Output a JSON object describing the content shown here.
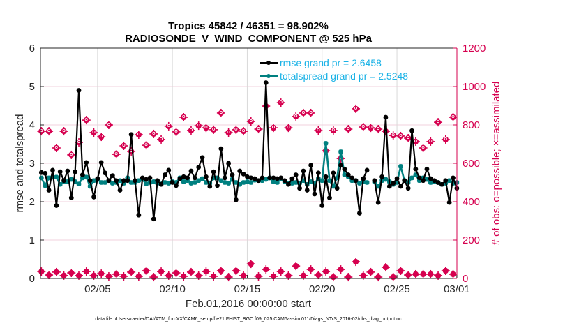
{
  "chart_data": {
    "type": "line",
    "title_line1": "Tropics 45842 / 46351 = 98.902%",
    "title_line2": "RADIOSONDE_V_WIND_COMPONENT @ 525 hPa",
    "xlabel": "Feb.01,2016 00:00:00 start",
    "ylabel": "rmse and totalspread",
    "ylabel_right": "# of obs: o=possible; ×=assimilated",
    "footer": "data file: /Users/raeder/DAI/ATM_forcXX/CAM6_setup/f.e21.FHIST_BGC.f09_025.CAM6assim.011/Diags_NTrS_2016-02/obs_diag_output.nc",
    "x_unit": "days since Feb.01,2016 00:00",
    "xlim": [
      0.2,
      28.0
    ],
    "ylim": [
      0,
      6
    ],
    "ylim_right": [
      0,
      1200
    ],
    "x_ticks": [
      {
        "value": 4,
        "label": "02/05"
      },
      {
        "value": 9,
        "label": "02/10"
      },
      {
        "value": 14,
        "label": "02/15"
      },
      {
        "value": 19,
        "label": "02/20"
      },
      {
        "value": 24,
        "label": "02/25"
      },
      {
        "value": 28,
        "label": "03/01"
      }
    ],
    "y_ticks": [
      "0",
      "1",
      "2",
      "3",
      "4",
      "5",
      "6"
    ],
    "y_ticks_right": [
      "0",
      "200",
      "400",
      "600",
      "800",
      "1000",
      "1200"
    ],
    "grid": true,
    "legend_position": "top-right",
    "series": [
      {
        "name": "rmse grand pr = 2.6458",
        "color": "#000000",
        "x_start": 0.25,
        "x_step": 0.25,
        "values": [
          2.76,
          2.74,
          2.3,
          2.82,
          1.9,
          2.78,
          2.55,
          2.8,
          2.1,
          2.78,
          4.9,
          2.7,
          3.02,
          2.55,
          2.12,
          2.6,
          3.02,
          2.75,
          2.55,
          2.68,
          2.55,
          2.3,
          2.55,
          2.55,
          3.75,
          2.55,
          1.65,
          2.62,
          2.58,
          2.62,
          1.55,
          2.55,
          2.45,
          2.7,
          2.82,
          2.5,
          2.42,
          2.6,
          2.65,
          2.62,
          2.8,
          2.62,
          2.9,
          3.15,
          2.65,
          2.4,
          2.78,
          2.42,
          3.38,
          2.62,
          3.0,
          2.7,
          2.05,
          2.8,
          2.72,
          2.65,
          2.62,
          2.6,
          2.55,
          2.62,
          5.1,
          2.62,
          2.62,
          2.6,
          2.62,
          2.55,
          2.45,
          2.6,
          2.7,
          2.35,
          2.8,
          2.3,
          2.95,
          2.2,
          2.75,
          1.9,
          2.65,
          2.1,
          2.75,
          2.35,
          2.95,
          2.85,
          2.7,
          2.62,
          2.55,
          1.7,
          2.6,
          2.82,
          null,
          2.55,
          1.98,
          2.65,
          4.2,
          2.4,
          2.48,
          2.6,
          2.4,
          2.55,
          2.35,
          3.85,
          2.85,
          2.62,
          2.55,
          2.85,
          2.6,
          2.55,
          2.5,
          2.45,
          2.55,
          1.98,
          2.62,
          2.35
        ]
      },
      {
        "name": "totalspread grand pr = 2.5248",
        "color": "#008080",
        "x_start": 0.25,
        "x_step": 0.25,
        "values": [
          2.62,
          2.42,
          2.62,
          2.64,
          2.64,
          2.45,
          2.52,
          2.52,
          2.58,
          2.52,
          2.46,
          2.62,
          2.64,
          2.4,
          2.55,
          2.58,
          2.5,
          2.5,
          2.55,
          2.48,
          2.5,
          2.55,
          2.48,
          2.62,
          2.5,
          2.5,
          2.55,
          2.58,
          2.46,
          2.5,
          2.52,
          2.48,
          2.46,
          2.5,
          2.48,
          2.52,
          2.5,
          2.62,
          2.52,
          2.55,
          2.48,
          2.5,
          2.55,
          2.6,
          2.5,
          2.48,
          2.62,
          2.62,
          2.55,
          2.5,
          2.48,
          2.58,
          2.5,
          2.45,
          2.5,
          2.52,
          2.5,
          2.56,
          2.55,
          2.55,
          2.58,
          2.62,
          2.52,
          2.5,
          2.6,
          2.52,
          2.48,
          2.48,
          2.5,
          2.48,
          2.55,
          2.45,
          2.52,
          2.48,
          2.6,
          2.55,
          3.52,
          2.55,
          2.4,
          2.62,
          3.3,
          2.7,
          2.65,
          2.55,
          2.55,
          2.48,
          2.52,
          2.5,
          null,
          2.52,
          2.4,
          2.55,
          2.58,
          2.52,
          2.45,
          2.5,
          2.92,
          2.55,
          2.5,
          2.62,
          2.7,
          2.55,
          2.62,
          2.58,
          2.5,
          2.52,
          2.5,
          2.45,
          2.48,
          2.55,
          2.48,
          2.5
        ]
      },
      {
        "name": "obs possible",
        "axis": "right",
        "marker": "o",
        "color": "#d6004f",
        "x_start": 0.25,
        "x_step": 0.5,
        "values": [
          767,
          767,
          680,
          767,
          644,
          709,
          825,
          760,
          738,
          800,
          647,
          691,
          662,
          749,
          694,
          753,
          724,
          793,
          764,
          840,
          771,
          796,
          785,
          775,
          862,
          760,
          775,
          767,
          818,
          778,
          898,
          785,
          916,
          785,
          844,
          862,
          862,
          771,
          665,
          771,
          625,
          778,
          884,
          789,
          785,
          778,
          767,
          745,
          742,
          731,
          713,
          680,
          713,
          814,
          724,
          840,
          789,
          800,
          807
        ]
      },
      {
        "name": "obs assimilated",
        "axis": "right",
        "marker": "*",
        "color": "#d6004f",
        "x_start": 0.25,
        "x_step": 0.5,
        "values": [
          36,
          18,
          33,
          15,
          29,
          15,
          36,
          15,
          25,
          11,
          22,
          11,
          33,
          11,
          40,
          7,
          36,
          15,
          29,
          11,
          33,
          15,
          36,
          11,
          40,
          7,
          40,
          15,
          76,
          11,
          47,
          11,
          36,
          15,
          65,
          15,
          47,
          18,
          36,
          7,
          47,
          7,
          87,
          15,
          33,
          7,
          58,
          7,
          40,
          18,
          22,
          22,
          22,
          15,
          40,
          22,
          58,
          25,
          7
        ]
      }
    ]
  }
}
